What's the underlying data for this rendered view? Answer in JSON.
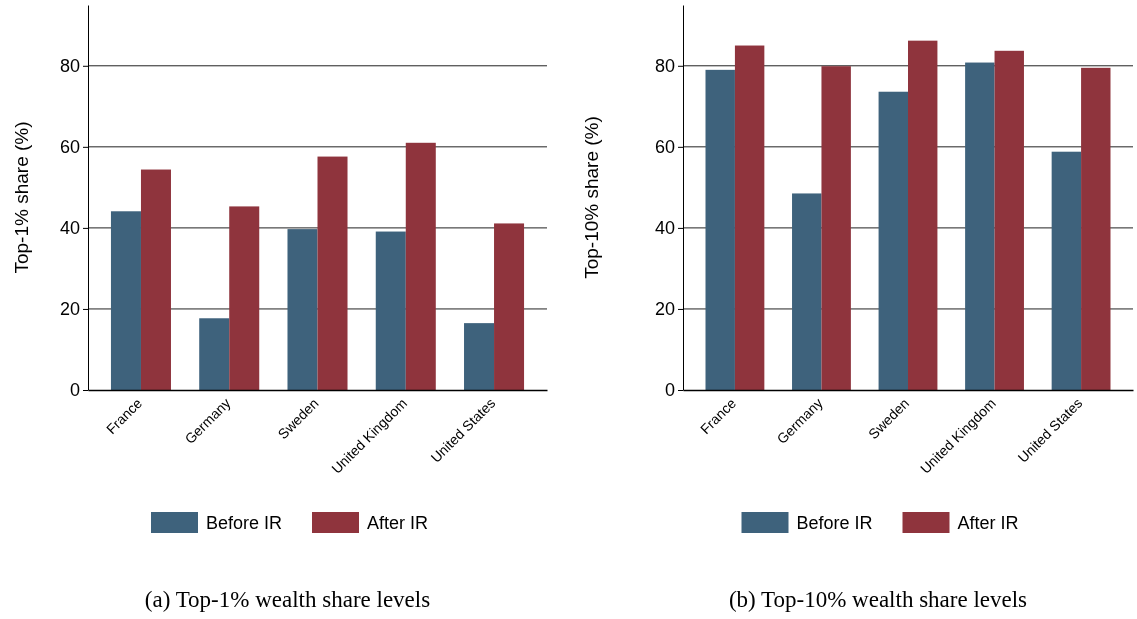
{
  "chart_data": [
    {
      "type": "bar",
      "title": "(a)  Top-1% wealth share levels",
      "ylabel": "Top-1% share (%)",
      "categories": [
        "France",
        "Germany",
        "Sweden",
        "United Kingdom",
        "United States"
      ],
      "series": [
        {
          "name": "Before IR",
          "color": "#3e627c",
          "values": [
            44.1,
            17.7,
            39.7,
            39.1,
            16.5
          ]
        },
        {
          "name": "After IR",
          "color": "#8f343d",
          "values": [
            54.4,
            45.3,
            57.6,
            61.0,
            41.1
          ]
        }
      ],
      "ylim": [
        0,
        95
      ],
      "yticks": [
        0,
        20,
        40,
        60,
        80
      ],
      "grid": "y",
      "legend": "bottom"
    },
    {
      "type": "bar",
      "title": "(b)  Top-10% wealth share levels",
      "ylabel": "Top-10% share (%)",
      "categories": [
        "France",
        "Germany",
        "Sweden",
        "United Kingdom",
        "United States"
      ],
      "series": [
        {
          "name": "Before IR",
          "color": "#3e627c",
          "values": [
            79.0,
            48.5,
            73.6,
            80.8,
            58.8
          ]
        },
        {
          "name": "After IR",
          "color": "#8f343d",
          "values": [
            85.0,
            79.9,
            86.2,
            83.7,
            79.5
          ]
        }
      ],
      "ylim": [
        0,
        95
      ],
      "yticks": [
        0,
        20,
        40,
        60,
        80
      ],
      "grid": "y",
      "legend": "bottom"
    }
  ]
}
